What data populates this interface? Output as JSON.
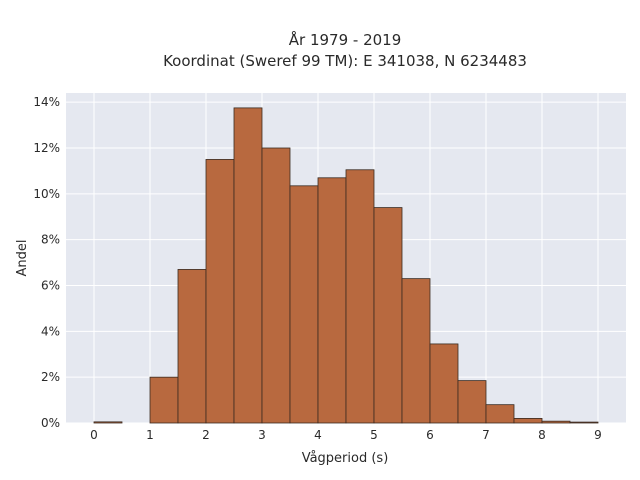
{
  "chart_data": {
    "type": "bar",
    "title_lines": [
      "År 1979 - 2019",
      "Koordinat (Sweref 99 TM): E 341038, N 6234483"
    ],
    "xlabel": "Vågperiod (s)",
    "ylabel": "Andel",
    "xlim": [
      -0.5,
      9.5
    ],
    "ylim": [
      0,
      14.4
    ],
    "x_ticks": [
      0,
      1,
      2,
      3,
      4,
      5,
      6,
      7,
      8,
      9
    ],
    "y_ticks": [
      0,
      2,
      4,
      6,
      8,
      10,
      12,
      14
    ],
    "y_tick_suffix": "%",
    "grid": true,
    "bin_width": 0.5,
    "bins": [
      {
        "start": 0.0,
        "value": 0.05
      },
      {
        "start": 1.0,
        "value": 2.0
      },
      {
        "start": 1.5,
        "value": 6.7
      },
      {
        "start": 2.0,
        "value": 11.5
      },
      {
        "start": 2.5,
        "value": 13.75
      },
      {
        "start": 3.0,
        "value": 12.0
      },
      {
        "start": 3.5,
        "value": 10.35
      },
      {
        "start": 4.0,
        "value": 10.7
      },
      {
        "start": 4.5,
        "value": 11.05
      },
      {
        "start": 5.0,
        "value": 9.4
      },
      {
        "start": 5.5,
        "value": 6.3
      },
      {
        "start": 6.0,
        "value": 3.45
      },
      {
        "start": 6.5,
        "value": 1.85
      },
      {
        "start": 7.0,
        "value": 0.8
      },
      {
        "start": 7.5,
        "value": 0.2
      },
      {
        "start": 8.0,
        "value": 0.08
      },
      {
        "start": 8.5,
        "value": 0.04
      }
    ],
    "colors": {
      "bar_fill": "#b8693f",
      "bar_stroke": "#3a2a20",
      "plot_background": "#e5e8f0",
      "grid": "#ffffff"
    }
  }
}
